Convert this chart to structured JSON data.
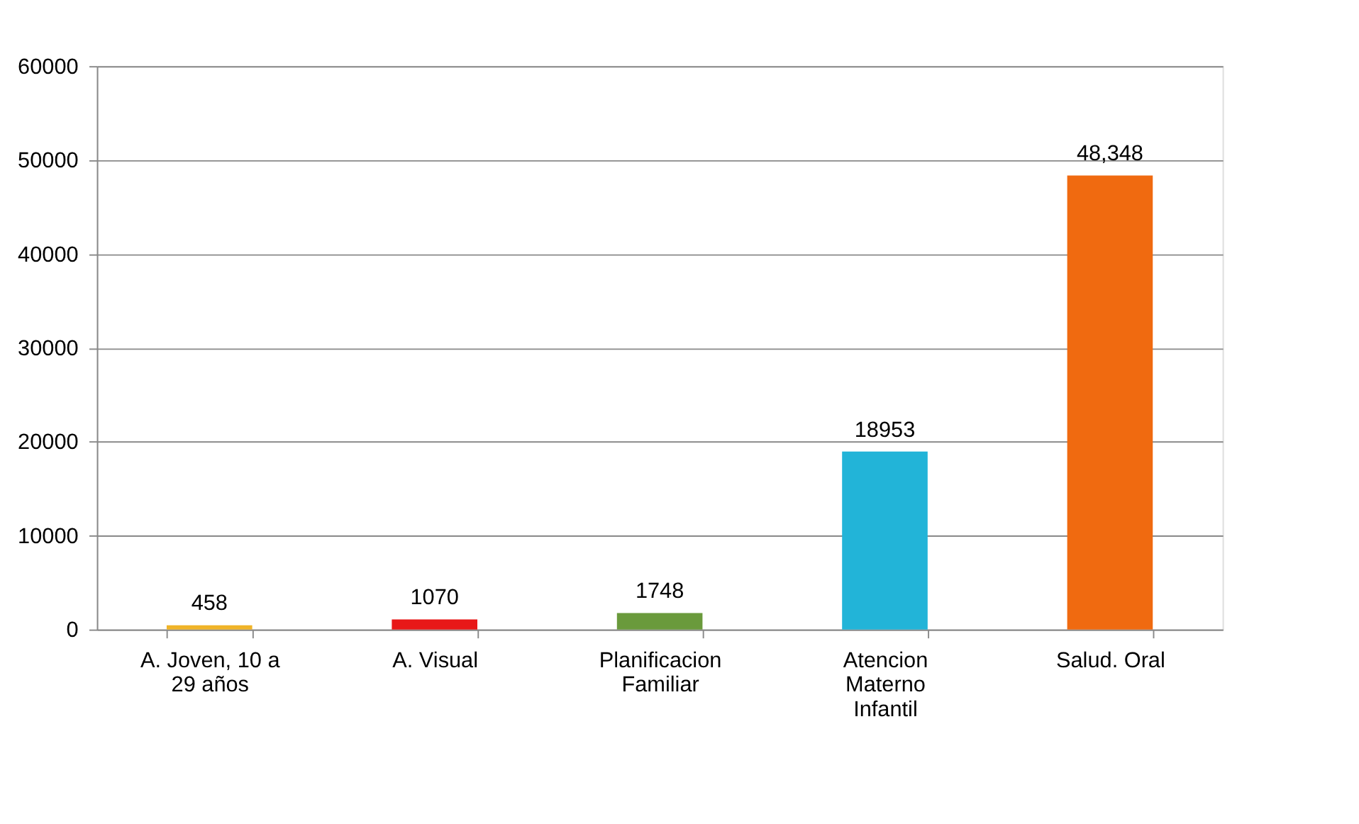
{
  "chart_data": {
    "type": "bar",
    "categories": [
      "A. Joven,  10 a\n29 años",
      "A. Visual",
      "Planificacion\nFamiliar",
      "Atencion\nMaterno\nInfantil",
      "Salud. Oral"
    ],
    "values": [
      458,
      1070,
      1748,
      18953,
      48348
    ],
    "colors": [
      "#f0b428",
      "#e81818",
      "#6a9a3c",
      "#22b4d8",
      "#f06a10"
    ],
    "value_labels": [
      "458",
      "1070",
      "1748",
      "18953",
      "48,348"
    ],
    "ylim": [
      0,
      60000
    ],
    "yticks": [
      0,
      10000,
      20000,
      30000,
      40000,
      50000,
      60000
    ],
    "grid": "y"
  }
}
